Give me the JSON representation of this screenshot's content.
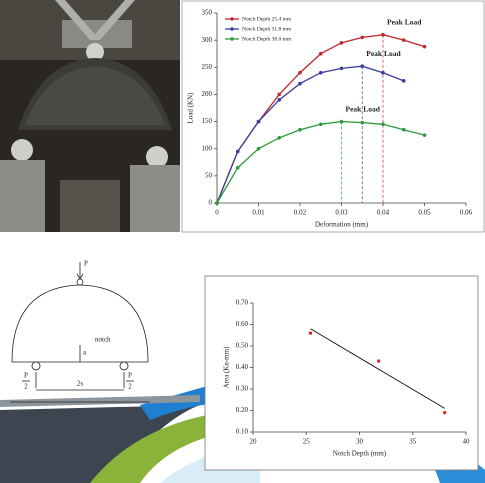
{
  "chart_data": [
    {
      "type": "line",
      "x_label": "Deformation (mm)",
      "y_label": "Load (KN)",
      "xlim": [
        0,
        0.06
      ],
      "xticks": [
        0,
        0.01,
        0.02,
        0.03,
        0.04,
        0.05,
        0.06
      ],
      "ylim": [
        0,
        350
      ],
      "yticks": [
        0,
        50,
        100,
        150,
        200,
        250,
        300,
        350
      ],
      "legend": "top-left",
      "annotations": [
        "Peak Load",
        "Peak Load",
        "Peak Load"
      ],
      "series": [
        {
          "name": "Notch Depth 25.4 mm",
          "color": "#c0282e",
          "x": [
            0,
            0.005,
            0.01,
            0.015,
            0.02,
            0.025,
            0.03,
            0.035,
            0.04,
            0.045,
            0.05
          ],
          "values": [
            0,
            95,
            150,
            200,
            240,
            275,
            295,
            305,
            310,
            300,
            288
          ]
        },
        {
          "name": "Notch Depth 31.8 mm",
          "color": "#3b3d9c",
          "x": [
            0,
            0.005,
            0.01,
            0.015,
            0.02,
            0.025,
            0.03,
            0.035,
            0.04,
            0.045
          ],
          "values": [
            0,
            95,
            150,
            190,
            220,
            240,
            248,
            252,
            240,
            225
          ]
        },
        {
          "name": "Notch Depth 38.0 mm",
          "color": "#2e9a3c",
          "x": [
            0,
            0.005,
            0.01,
            0.015,
            0.02,
            0.025,
            0.03,
            0.035,
            0.04,
            0.045,
            0.05
          ],
          "values": [
            0,
            65,
            100,
            120,
            135,
            145,
            150,
            148,
            145,
            135,
            125
          ]
        }
      ]
    },
    {
      "type": "scatter",
      "x_label": "Notch Depth (mm)",
      "y_label": "Area (Kn-mm)",
      "xlim": [
        20,
        40
      ],
      "xticks": [
        20,
        25,
        30,
        35,
        40
      ],
      "ylim": [
        0.1,
        0.7
      ],
      "yticks": [
        {
          "value": 0.1,
          "label": "0.10"
        },
        {
          "value": 0.2,
          "label": "0.20"
        },
        {
          "value": 0.3,
          "label": "0.30"
        },
        {
          "value": 0.4,
          "label": "0.40"
        },
        {
          "value": 0.5,
          "label": "0.50"
        },
        {
          "value": 0.6,
          "label": "0.60"
        },
        {
          "value": 0.7,
          "label": "0.70"
        }
      ],
      "color": "#e02020",
      "x": [
        25.4,
        31.8,
        38
      ],
      "values": [
        0.56,
        0.43,
        0.19
      ],
      "trendline": {
        "x": [
          25.4,
          38
        ],
        "values": [
          0.58,
          0.21
        ]
      }
    }
  ],
  "diagram": {
    "load": "P",
    "notch": "notch",
    "depth": "a",
    "span": "2s",
    "left_support": {
      "numerator": "P",
      "denominator": "2"
    },
    "right_support": {
      "numerator": "P",
      "denominator": "2"
    }
  }
}
